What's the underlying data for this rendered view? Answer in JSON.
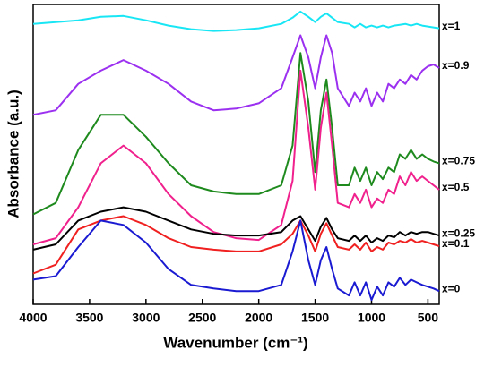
{
  "chart_data": {
    "type": "line",
    "xlabel": "Wavenumber (cm⁻¹)",
    "ylabel": "Absorbance (a.u.)",
    "x": [
      4000,
      3800,
      3600,
      3400,
      3200,
      3000,
      2800,
      2600,
      2400,
      2200,
      2000,
      1800,
      1700,
      1630,
      1560,
      1500,
      1450,
      1400,
      1350,
      1300,
      1200,
      1150,
      1100,
      1050,
      1000,
      950,
      900,
      850,
      800,
      750,
      700,
      650,
      600,
      550,
      500,
      450,
      400
    ],
    "xlim": [
      4000,
      400
    ],
    "xticks": [
      4000,
      3500,
      3000,
      2500,
      2000,
      1500,
      1000,
      500
    ],
    "ylim": [
      0,
      340
    ],
    "series": [
      {
        "name": "x=1",
        "color": "#19e6f5",
        "values": [
          318,
          320,
          322,
          326,
          327,
          322,
          316,
          312,
          310,
          311,
          313,
          318,
          325,
          332,
          326,
          320,
          326,
          330,
          325,
          320,
          318,
          314,
          318,
          314,
          316,
          314,
          316,
          314,
          316,
          317,
          318,
          316,
          318,
          316,
          315,
          314,
          313
        ]
      },
      {
        "name": "x=0.9",
        "color": "#9b30f0",
        "values": [
          215,
          220,
          250,
          265,
          277,
          265,
          250,
          230,
          220,
          222,
          228,
          245,
          280,
          305,
          280,
          245,
          280,
          305,
          285,
          245,
          225,
          240,
          230,
          245,
          225,
          240,
          230,
          250,
          245,
          255,
          250,
          260,
          255,
          265,
          270,
          272,
          268
        ]
      },
      {
        "name": "x=0.75",
        "color": "#1e8a1e",
        "values": [
          102,
          115,
          175,
          215,
          215,
          190,
          160,
          135,
          128,
          125,
          125,
          135,
          180,
          285,
          230,
          150,
          220,
          255,
          200,
          135,
          135,
          155,
          140,
          155,
          135,
          150,
          142,
          155,
          150,
          170,
          165,
          175,
          165,
          170,
          165,
          162,
          160
        ]
      },
      {
        "name": "x=0.5",
        "color": "#f0208c",
        "values": [
          68,
          75,
          110,
          160,
          180,
          160,
          125,
          100,
          82,
          75,
          73,
          90,
          140,
          265,
          200,
          130,
          200,
          240,
          180,
          115,
          110,
          125,
          115,
          130,
          110,
          120,
          115,
          130,
          125,
          145,
          135,
          150,
          140,
          145,
          140,
          135,
          130
        ]
      },
      {
        "name": "x=0.25",
        "color": "#000000",
        "values": [
          62,
          68,
          95,
          105,
          110,
          105,
          95,
          85,
          80,
          78,
          78,
          82,
          95,
          100,
          85,
          72,
          88,
          98,
          85,
          75,
          72,
          78,
          72,
          78,
          70,
          75,
          72,
          78,
          76,
          82,
          78,
          82,
          80,
          82,
          82,
          80,
          78
        ]
      },
      {
        "name": "x=0.1",
        "color": "#f02020",
        "values": [
          35,
          45,
          85,
          95,
          100,
          90,
          75,
          65,
          62,
          60,
          60,
          68,
          80,
          95,
          78,
          60,
          80,
          92,
          78,
          65,
          62,
          68,
          62,
          70,
          60,
          65,
          62,
          70,
          68,
          72,
          70,
          74,
          70,
          72,
          70,
          68,
          66
        ]
      },
      {
        "name": "x=0",
        "color": "#1a1ad2",
        "values": [
          28,
          32,
          65,
          95,
          90,
          70,
          40,
          22,
          18,
          15,
          15,
          22,
          60,
          95,
          50,
          22,
          50,
          65,
          40,
          18,
          10,
          25,
          10,
          25,
          5,
          20,
          10,
          25,
          20,
          30,
          22,
          28,
          25,
          22,
          20,
          18,
          15
        ]
      }
    ]
  }
}
